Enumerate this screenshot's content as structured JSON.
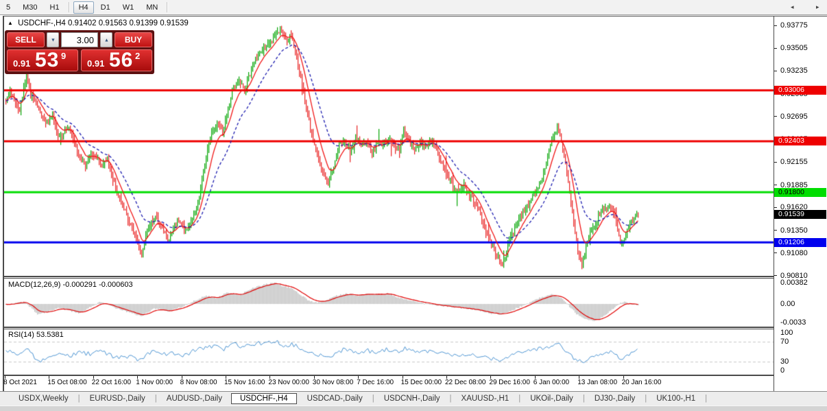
{
  "colors": {
    "up": "#00a400",
    "down": "#e82020",
    "ma_fast": "#f01414",
    "ma_slow": "#1a1aae",
    "macd_hist": "#bfbfbf",
    "macd_signal": "#e00000",
    "rsi_line": "#4690d0",
    "level_red": "#ee0000",
    "level_green": "#00dd00",
    "level_blue": "#0000ee",
    "badge_black": "#000000",
    "rsi_level_dash": "#c8c8c8"
  },
  "toolbar": {
    "timeframes": [
      {
        "label": "5",
        "active": false
      },
      {
        "label": "M30",
        "active": false
      },
      {
        "label": "H1",
        "active": false
      },
      {
        "label": "H4",
        "active": true
      },
      {
        "label": "D1",
        "active": false
      },
      {
        "label": "W1",
        "active": false
      },
      {
        "label": "MN",
        "active": false
      }
    ],
    "separators_after": [
      "H1",
      "MN"
    ]
  },
  "chart_header": {
    "collapse_icon": "▲",
    "symbol": "USDCHF-,H4",
    "ohlc": "0.91402 0.91563 0.91399 0.91539"
  },
  "trade_widget": {
    "sell_label": "SELL",
    "buy_label": "BUY",
    "volume": "3.00",
    "spinner_down": "▼",
    "spinner_up": "▲",
    "sell_price": {
      "prefix": "0.91",
      "digits": "53",
      "sup": "9"
    },
    "buy_price": {
      "prefix": "0.91",
      "digits": "56",
      "sup": "2"
    }
  },
  "price_axis": {
    "ticks": [
      {
        "label": "0.93775",
        "value": 0.93775
      },
      {
        "label": "0.93505",
        "value": 0.93505
      },
      {
        "label": "0.93235",
        "value": 0.93235
      },
      {
        "label": "0.92965",
        "value": 0.92965
      },
      {
        "label": "0.92695",
        "value": 0.92695
      },
      {
        "label": "0.92425",
        "value": 0.92425
      },
      {
        "label": "0.92155",
        "value": 0.92155
      },
      {
        "label": "0.91885",
        "value": 0.91885
      },
      {
        "label": "0.91620",
        "value": 0.9162
      },
      {
        "label": "0.91350",
        "value": 0.9135
      },
      {
        "label": "0.91080",
        "value": 0.9108
      },
      {
        "label": "0.90810",
        "value": 0.9081
      }
    ],
    "markers": [
      {
        "label": "0.93006",
        "price": 0.93006,
        "bg": "#ee0000",
        "fg": "#ffffff",
        "line": true
      },
      {
        "label": "0.92403",
        "price": 0.92403,
        "bg": "#ee0000",
        "fg": "#ffffff",
        "line": true
      },
      {
        "label": "0.91800",
        "price": 0.918,
        "bg": "#00dd00",
        "fg": "#000000",
        "line": true
      },
      {
        "label": "0.91539",
        "price": 0.91539,
        "bg": "#000000",
        "fg": "#ffffff",
        "line": false
      },
      {
        "label": "0.91206",
        "price": 0.91206,
        "bg": "#0000ee",
        "fg": "#ffffff",
        "line": true
      }
    ]
  },
  "time_axis": {
    "labels": [
      "8 Oct 2021",
      "15 Oct 08:00",
      "22 Oct 16:00",
      "1 Nov 00:00",
      "8 Nov 08:00",
      "15 Nov 16:00",
      "23 Nov 00:00",
      "30 Nov 08:00",
      "7 Dec 16:00",
      "15 Dec 00:00",
      "22 Dec 08:00",
      "29 Dec 16:00",
      "6 Jan 00:00",
      "13 Jan 08:00",
      "20 Jan 16:00"
    ]
  },
  "indicators": {
    "macd": {
      "label": "MACD(12,26,9) -0.000291 -0.000603",
      "axis_ticks": [
        {
          "label": "0.00382",
          "value": 0.00382
        },
        {
          "label": "0.00",
          "value": 0
        },
        {
          "label": "-0.0033",
          "value": -0.0033
        }
      ]
    },
    "rsi": {
      "label": "RSI(14) 53.5381",
      "axis_ticks": [
        {
          "label": "100",
          "value": 100
        },
        {
          "label": "70",
          "value": 70
        },
        {
          "label": "30",
          "value": 30
        },
        {
          "label": "0",
          "value": 0
        }
      ],
      "levels": [
        70,
        30
      ]
    }
  },
  "tabs": {
    "items": [
      {
        "label": "USDX,Weekly",
        "active": false
      },
      {
        "label": "EURUSD-,Daily",
        "active": false
      },
      {
        "label": "AUDUSD-,Daily",
        "active": false
      },
      {
        "label": "USDCHF-,H4",
        "active": true
      },
      {
        "label": "USDCAD-,Daily",
        "active": false
      },
      {
        "label": "USDCNH-,Daily",
        "active": false
      },
      {
        "label": "XAUUSD-,H1",
        "active": false
      },
      {
        "label": "UKOil-,Daily",
        "active": false
      },
      {
        "label": "DJ30-,Daily",
        "active": false
      },
      {
        "label": "UK100-,H1",
        "active": false
      }
    ],
    "scroll_left": "◂",
    "scroll_right": "▸"
  },
  "chart_data": [
    {
      "type": "candlestick",
      "title": "USDCHF-,H4",
      "ohlc_current": {
        "open": 0.91402,
        "high": 0.91563,
        "low": 0.91399,
        "close": 0.91539
      },
      "ylim": [
        0.9081,
        0.93775
      ],
      "hlines": [
        {
          "price": 0.93006,
          "color": "#ee0000"
        },
        {
          "price": 0.92403,
          "color": "#ee0000"
        },
        {
          "price": 0.918,
          "color": "#00dd00"
        },
        {
          "price": 0.91206,
          "color": "#0000ee"
        }
      ],
      "price_keypoints": [
        [
          8,
          0.9287
        ],
        [
          14,
          0.9301
        ],
        [
          20,
          0.9288
        ],
        [
          28,
          0.9278
        ],
        [
          38,
          0.9316
        ],
        [
          44,
          0.9295
        ],
        [
          52,
          0.9287
        ],
        [
          60,
          0.927
        ],
        [
          68,
          0.9262
        ],
        [
          76,
          0.927
        ],
        [
          84,
          0.9247
        ],
        [
          92,
          0.925
        ],
        [
          100,
          0.9256
        ],
        [
          108,
          0.9238
        ],
        [
          116,
          0.9222
        ],
        [
          124,
          0.921
        ],
        [
          132,
          0.9226
        ],
        [
          140,
          0.9218
        ],
        [
          148,
          0.9212
        ],
        [
          156,
          0.922
        ],
        [
          164,
          0.9195
        ],
        [
          172,
          0.9175
        ],
        [
          180,
          0.916
        ],
        [
          190,
          0.914
        ],
        [
          198,
          0.9125
        ],
        [
          206,
          0.9105
        ],
        [
          212,
          0.913
        ],
        [
          220,
          0.9145
        ],
        [
          228,
          0.915
        ],
        [
          236,
          0.9137
        ],
        [
          244,
          0.9122
        ],
        [
          252,
          0.9136
        ],
        [
          260,
          0.9147
        ],
        [
          268,
          0.9132
        ],
        [
          276,
          0.9142
        ],
        [
          284,
          0.9156
        ],
        [
          292,
          0.9185
        ],
        [
          300,
          0.9222
        ],
        [
          308,
          0.9248
        ],
        [
          316,
          0.9262
        ],
        [
          324,
          0.925
        ],
        [
          332,
          0.9278
        ],
        [
          340,
          0.9305
        ],
        [
          348,
          0.9312
        ],
        [
          356,
          0.93
        ],
        [
          364,
          0.932
        ],
        [
          372,
          0.9338
        ],
        [
          382,
          0.9348
        ],
        [
          392,
          0.9355
        ],
        [
          402,
          0.9369
        ],
        [
          408,
          0.9373
        ],
        [
          416,
          0.936
        ],
        [
          424,
          0.9366
        ],
        [
          432,
          0.934
        ],
        [
          440,
          0.9305
        ],
        [
          448,
          0.927
        ],
        [
          456,
          0.924
        ],
        [
          464,
          0.9218
        ],
        [
          472,
          0.92
        ],
        [
          478,
          0.919
        ],
        [
          486,
          0.9212
        ],
        [
          494,
          0.9235
        ],
        [
          502,
          0.9242
        ],
        [
          510,
          0.923
        ],
        [
          518,
          0.9246
        ],
        [
          526,
          0.9232
        ],
        [
          534,
          0.9241
        ],
        [
          542,
          0.9228
        ],
        [
          550,
          0.924
        ],
        [
          558,
          0.9236
        ],
        [
          566,
          0.9244
        ],
        [
          574,
          0.9238
        ],
        [
          582,
          0.923
        ],
        [
          588,
          0.9254
        ],
        [
          596,
          0.924
        ],
        [
          604,
          0.9228
        ],
        [
          612,
          0.924
        ],
        [
          620,
          0.9235
        ],
        [
          628,
          0.9242
        ],
        [
          636,
          0.923
        ],
        [
          644,
          0.9215
        ],
        [
          652,
          0.92
        ],
        [
          660,
          0.9187
        ],
        [
          668,
          0.918
        ],
        [
          676,
          0.9188
        ],
        [
          684,
          0.9175
        ],
        [
          692,
          0.917
        ],
        [
          700,
          0.9152
        ],
        [
          708,
          0.9132
        ],
        [
          716,
          0.9118
        ],
        [
          724,
          0.9105
        ],
        [
          733,
          0.9092
        ],
        [
          740,
          0.9118
        ],
        [
          748,
          0.9134
        ],
        [
          756,
          0.9148
        ],
        [
          764,
          0.9158
        ],
        [
          772,
          0.9168
        ],
        [
          780,
          0.9178
        ],
        [
          788,
          0.9192
        ],
        [
          796,
          0.9215
        ],
        [
          804,
          0.9242
        ],
        [
          812,
          0.9258
        ],
        [
          818,
          0.924
        ],
        [
          826,
          0.9205
        ],
        [
          834,
          0.9155
        ],
        [
          842,
          0.911
        ],
        [
          848,
          0.9093
        ],
        [
          856,
          0.9122
        ],
        [
          864,
          0.9138
        ],
        [
          872,
          0.915
        ],
        [
          880,
          0.916
        ],
        [
          888,
          0.9163
        ],
        [
          896,
          0.915
        ],
        [
          904,
          0.9118
        ],
        [
          912,
          0.913
        ],
        [
          920,
          0.9146
        ],
        [
          930,
          0.9154
        ]
      ]
    },
    {
      "type": "area",
      "name": "MACD(12,26,9)",
      "current_values": [
        -0.000291,
        -0.000603
      ],
      "ylim": [
        -0.0033,
        0.00382
      ],
      "macd_keypoints": [
        [
          8,
          -0.0001
        ],
        [
          35,
          0.0004
        ],
        [
          55,
          -0.0019
        ],
        [
          85,
          -0.0007
        ],
        [
          115,
          -0.0017
        ],
        [
          145,
          0.0004
        ],
        [
          165,
          -0.0006
        ],
        [
          185,
          -0.0014
        ],
        [
          205,
          -0.0022
        ],
        [
          225,
          -0.0008
        ],
        [
          245,
          -0.0013
        ],
        [
          265,
          -0.0005
        ],
        [
          285,
          0.0007
        ],
        [
          300,
          0.0015
        ],
        [
          315,
          0.0011
        ],
        [
          330,
          0.0021
        ],
        [
          348,
          0.0016
        ],
        [
          365,
          0.0027
        ],
        [
          385,
          0.0035
        ],
        [
          400,
          0.0038
        ],
        [
          412,
          0.0032
        ],
        [
          425,
          0.0028
        ],
        [
          438,
          0.0016
        ],
        [
          450,
          0.0006
        ],
        [
          462,
          0.0002
        ],
        [
          475,
          0.0007
        ],
        [
          490,
          0.0015
        ],
        [
          505,
          0.0019
        ],
        [
          520,
          0.0015
        ],
        [
          535,
          0.0018
        ],
        [
          550,
          0.0017
        ],
        [
          565,
          0.0019
        ],
        [
          580,
          0.0012
        ],
        [
          595,
          0.0007
        ],
        [
          610,
          0.0003
        ],
        [
          625,
          0.0
        ],
        [
          640,
          -0.0003
        ],
        [
          655,
          -0.0005
        ],
        [
          670,
          -0.0007
        ],
        [
          685,
          -0.0009
        ],
        [
          700,
          -0.0013
        ],
        [
          715,
          -0.0017
        ],
        [
          730,
          -0.0019
        ],
        [
          745,
          -0.0012
        ],
        [
          760,
          -0.0004
        ],
        [
          775,
          0.0004
        ],
        [
          790,
          0.0013
        ],
        [
          805,
          0.0017
        ],
        [
          818,
          0.001
        ],
        [
          830,
          -0.0005
        ],
        [
          842,
          -0.002
        ],
        [
          855,
          -0.0029
        ],
        [
          866,
          -0.0031
        ],
        [
          878,
          -0.0024
        ],
        [
          890,
          -0.0012
        ],
        [
          900,
          -0.0002
        ],
        [
          908,
          0.0004
        ],
        [
          918,
          0.0001
        ],
        [
          930,
          -0.0003
        ]
      ]
    },
    {
      "type": "line",
      "name": "RSI(14)",
      "current_value": 53.5381,
      "ylim": [
        0,
        100
      ],
      "levels": [
        70,
        30
      ],
      "rsi_keypoints": [
        [
          8,
          52
        ],
        [
          25,
          45
        ],
        [
          40,
          55
        ],
        [
          55,
          28
        ],
        [
          70,
          42
        ],
        [
          85,
          48
        ],
        [
          100,
          40
        ],
        [
          115,
          50
        ],
        [
          130,
          45
        ],
        [
          145,
          52
        ],
        [
          160,
          42
        ],
        [
          175,
          38
        ],
        [
          190,
          40
        ],
        [
          205,
          32
        ],
        [
          220,
          50
        ],
        [
          235,
          45
        ],
        [
          250,
          48
        ],
        [
          265,
          42
        ],
        [
          280,
          50
        ],
        [
          295,
          58
        ],
        [
          310,
          62
        ],
        [
          325,
          55
        ],
        [
          340,
          65
        ],
        [
          355,
          60
        ],
        [
          370,
          65
        ],
        [
          385,
          68
        ],
        [
          400,
          72
        ],
        [
          415,
          62
        ],
        [
          425,
          66
        ],
        [
          440,
          55
        ],
        [
          455,
          48
        ],
        [
          470,
          42
        ],
        [
          480,
          38
        ],
        [
          490,
          50
        ],
        [
          505,
          55
        ],
        [
          520,
          48
        ],
        [
          535,
          52
        ],
        [
          550,
          50
        ],
        [
          565,
          55
        ],
        [
          580,
          48
        ],
        [
          590,
          56
        ],
        [
          605,
          48
        ],
        [
          620,
          52
        ],
        [
          635,
          50
        ],
        [
          650,
          45
        ],
        [
          665,
          42
        ],
        [
          680,
          46
        ],
        [
          695,
          42
        ],
        [
          710,
          38
        ],
        [
          725,
          35
        ],
        [
          733,
          30
        ],
        [
          745,
          45
        ],
        [
          760,
          50
        ],
        [
          775,
          52
        ],
        [
          790,
          56
        ],
        [
          805,
          62
        ],
        [
          812,
          68
        ],
        [
          820,
          58
        ],
        [
          830,
          45
        ],
        [
          842,
          32
        ],
        [
          850,
          28
        ],
        [
          862,
          40
        ],
        [
          875,
          45
        ],
        [
          888,
          50
        ],
        [
          898,
          46
        ],
        [
          905,
          34
        ],
        [
          915,
          45
        ],
        [
          925,
          53.5
        ]
      ]
    }
  ]
}
